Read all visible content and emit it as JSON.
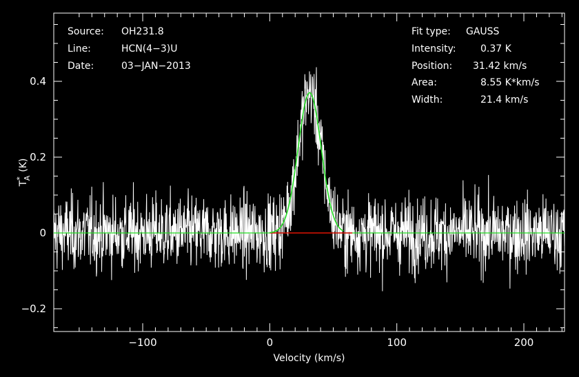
{
  "chart_data": {
    "type": "line",
    "xlabel": "Velocity (km/s)",
    "ylabel": "T*A (K)",
    "ylabel_main": "T",
    "ylabel_sup": "*",
    "ylabel_sub": "A",
    "ylabel_unit": "(K)",
    "xlim": [
      -170,
      232
    ],
    "ylim": [
      -0.26,
      0.58
    ],
    "x_ticks": [
      -100,
      0,
      100,
      200
    ],
    "x_tick_labels": [
      "−100",
      "0",
      "100",
      "200"
    ],
    "y_ticks": [
      -0.2,
      0,
      0.2,
      0.4
    ],
    "y_tick_labels": [
      "−0.2",
      "0",
      "0.2",
      "0.4"
    ],
    "noise_rms": 0.07,
    "baseline": 0,
    "colors": {
      "spectrum": "#ffffff",
      "fit": "#22dd22",
      "window": "#dd0000",
      "frame": "#ffffff"
    },
    "fit_window": [
      0,
      65
    ],
    "fit": {
      "type": "gaussian",
      "amplitude": 0.37,
      "center": 31.42,
      "fwhm": 21.4,
      "area": 8.55
    },
    "series": [
      {
        "values_note": "noisy spectrum, Gaussian line + noise",
        "x_start": -170,
        "x_end": 232
      }
    ]
  },
  "header_left": [
    {
      "key": "Source:",
      "value": "OH231.8"
    },
    {
      "key": "Line:",
      "value": "HCN(4−3)U"
    },
    {
      "key": "Date:",
      "value": "03−JAN−2013"
    }
  ],
  "header_right": [
    {
      "key": "Fit type:",
      "value": "GAUSS"
    },
    {
      "key": "Intensity:",
      "value": "0.37 K"
    },
    {
      "key": "Position:",
      "value": "31.42 km/s"
    },
    {
      "key": "Area:",
      "value": "8.55 K*km/s"
    },
    {
      "key": "Width:",
      "value": "21.4 km/s"
    }
  ]
}
